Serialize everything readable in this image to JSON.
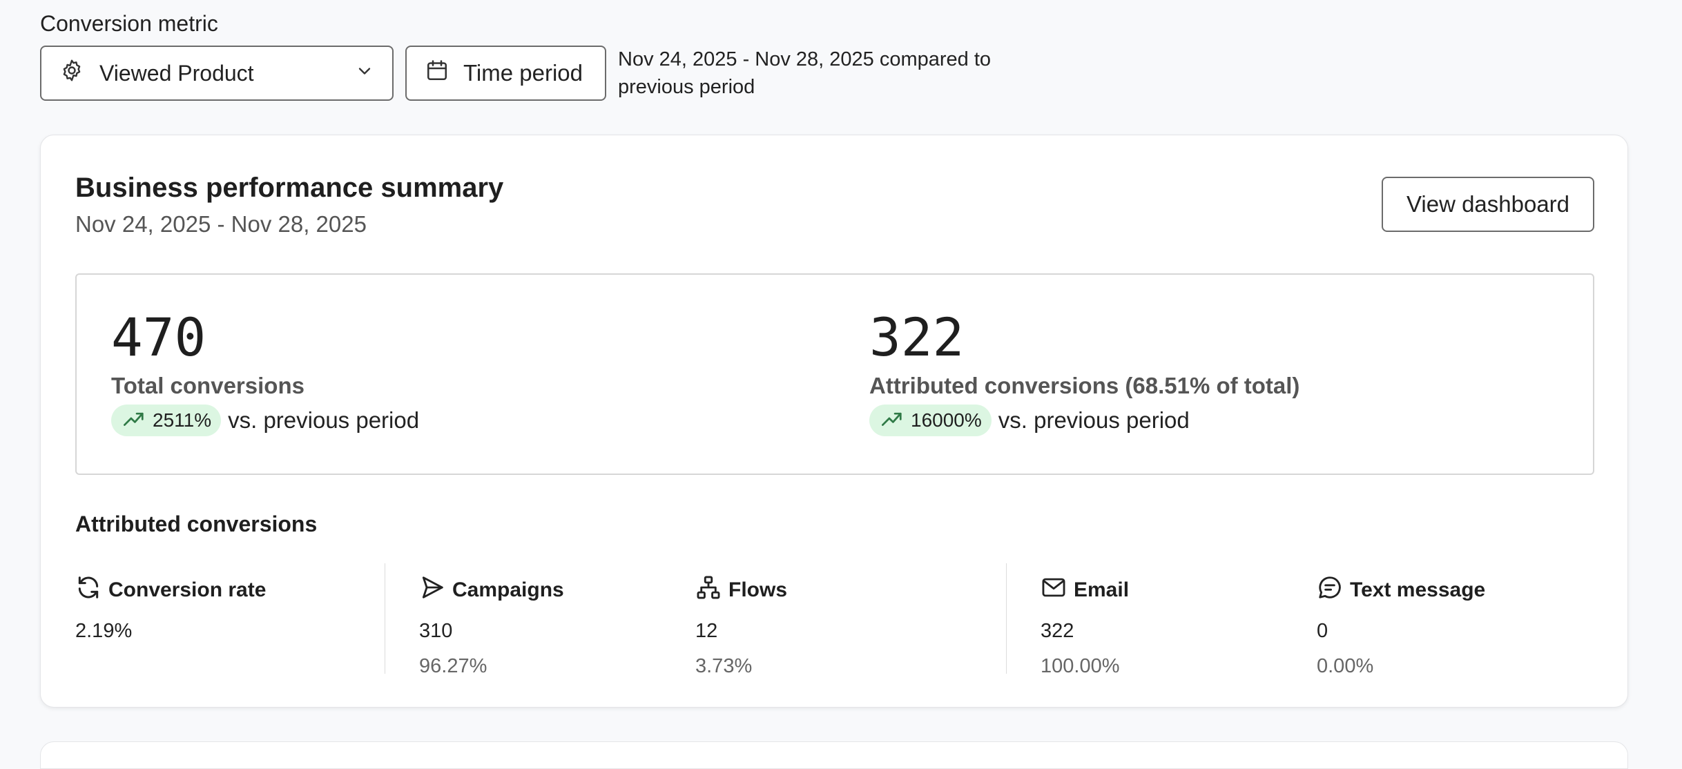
{
  "header": {
    "metric_label": "Conversion metric",
    "metric_select": {
      "value": "Viewed Product",
      "icon": "gear-icon"
    },
    "time_button": {
      "label": "Time period",
      "icon": "calendar-icon"
    },
    "range_note": "Nov 24, 2025 - Nov 28, 2025 compared to previous period"
  },
  "card": {
    "title": "Business performance summary",
    "subtitle": "Nov 24, 2025 - Nov 28, 2025",
    "view_dashboard_label": "View dashboard",
    "total": {
      "value": "470",
      "label": "Total conversions",
      "trend": "2511%",
      "trend_text": "vs. previous period"
    },
    "attributed": {
      "value": "322",
      "label": "Attributed conversions (68.51% of total)",
      "trend": "16000%",
      "trend_text": "vs. previous period"
    },
    "section_title": "Attributed conversions",
    "columns": [
      {
        "label": "Conversion rate",
        "icon": "refresh-icon",
        "value": "2.19%",
        "share": ""
      },
      {
        "label": "Campaigns",
        "icon": "send-icon",
        "value": "310",
        "share": "96.27%"
      },
      {
        "label": "Flows",
        "icon": "flow-icon",
        "value": "12",
        "share": "3.73%"
      },
      {
        "label": "Email",
        "icon": "mail-icon",
        "value": "322",
        "share": "100.00%"
      },
      {
        "label": "Text message",
        "icon": "chat-icon",
        "value": "0",
        "share": "0.00%"
      }
    ]
  },
  "colors": {
    "trend_pill_bg": "#dcf6e2",
    "trend_icon": "#2f7a46",
    "page_bg": "#f8f9fb"
  }
}
